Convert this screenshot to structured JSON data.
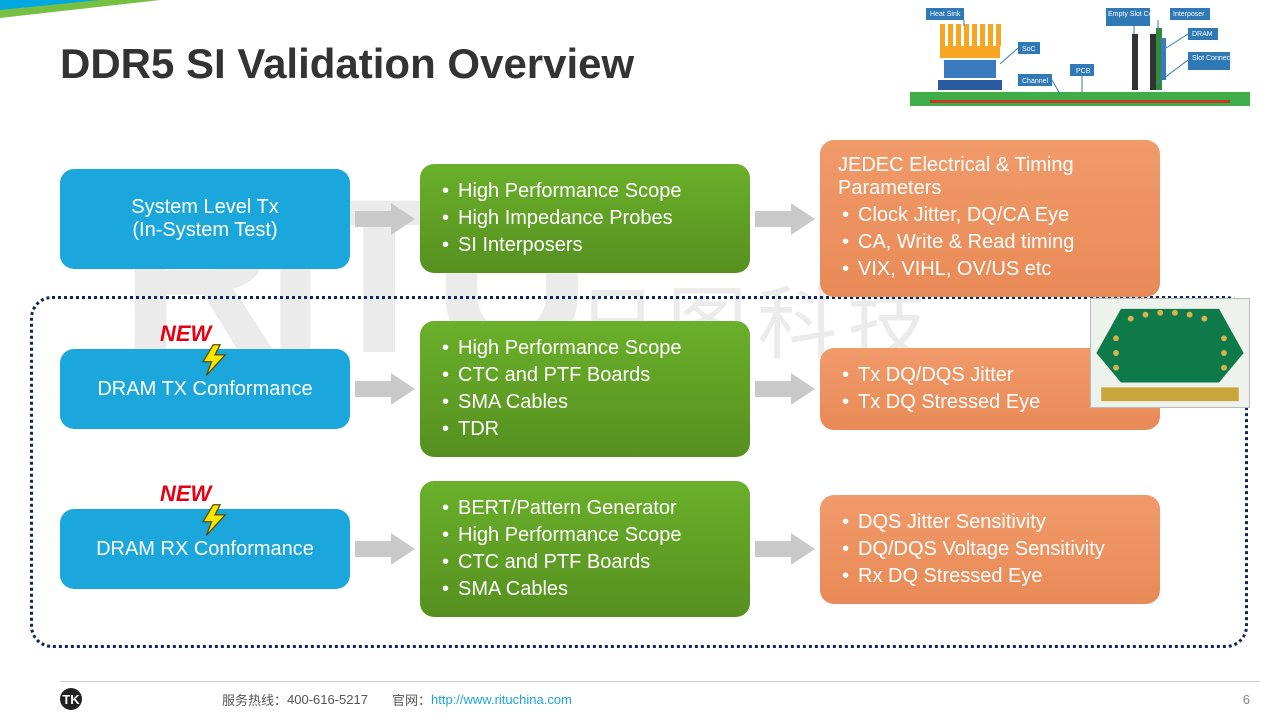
{
  "title": "DDR5 SI Validation Overview",
  "watermark": {
    "latin": "RiTU",
    "cn": "日图科技"
  },
  "colors": {
    "blue": "#1ba7db",
    "green_top": "#6ab02a",
    "green_bot": "#569020",
    "orange_top": "#f19a6a",
    "orange_bot": "#e88a57",
    "arrow": "#c9c9c9",
    "new": "#e60012",
    "dash": "#0a2a5e"
  },
  "rows": [
    {
      "blue": {
        "line1": "System Level Tx",
        "line2": "(In-System Test)",
        "new": ""
      },
      "green": [
        "High Performance Scope",
        "High Impedance Probes",
        "SI Interposers"
      ],
      "orange": {
        "header": "JEDEC Electrical & Timing Parameters",
        "items": [
          "Clock Jitter, DQ/CA Eye",
          "CA, Write & Read timing",
          "VIX, VIHL, OV/US etc"
        ]
      }
    },
    {
      "blue": {
        "line1": "DRAM TX Conformance",
        "line2": "",
        "new": "NEW"
      },
      "green": [
        "High Performance Scope",
        "CTC and PTF Boards",
        "SMA Cables",
        "TDR"
      ],
      "orange": {
        "header": "",
        "items": [
          "Tx DQ/DQS Jitter",
          "Tx DQ Stressed Eye"
        ]
      }
    },
    {
      "blue": {
        "line1": "DRAM RX Conformance",
        "line2": "",
        "new": "NEW"
      },
      "green": [
        "BERT/Pattern Generator",
        "High Performance Scope",
        "CTC and PTF Boards",
        "SMA Cables"
      ],
      "orange": {
        "header": "",
        "items": [
          "DQS Jitter Sensitivity",
          "DQ/DQS Voltage Sensitivity",
          "Rx DQ Stressed Eye"
        ]
      }
    }
  ],
  "diagram_labels": {
    "heatsink": "Heat Sink",
    "soc": "SoC",
    "channel": "Channel",
    "pcb": "PCB",
    "empty": "Empty Slot Connector",
    "interposer": "Interposer",
    "dram": "DRAM",
    "slot": "Slot Connector"
  },
  "footer": {
    "hotline_label": "服务热线：",
    "hotline": "400-616-5217",
    "site_label": "官网：",
    "site": "http://www.rituchina.com",
    "page": "6",
    "logo": "TK"
  }
}
